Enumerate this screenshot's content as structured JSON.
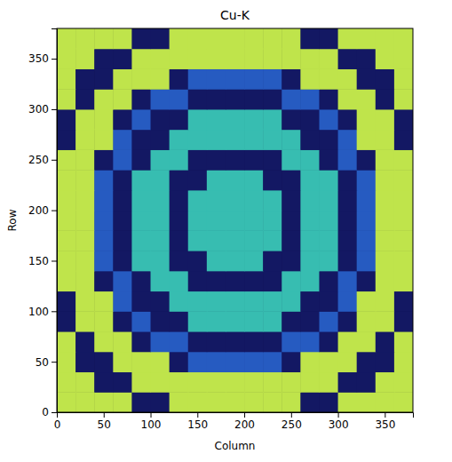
{
  "chart_data": {
    "type": "heatmap",
    "title": "Cu-K",
    "x_label": "Column",
    "y_label": "Row",
    "x": [
      10,
      30,
      50,
      70,
      90,
      110,
      130,
      150,
      170,
      190,
      210,
      230,
      250,
      270,
      290,
      310,
      330,
      350,
      370
    ],
    "y": [
      10,
      30,
      50,
      70,
      90,
      110,
      130,
      150,
      170,
      190,
      210,
      230,
      250,
      270,
      290,
      310,
      330,
      350,
      370
    ],
    "values": [
      [
        7,
        7,
        7,
        7,
        1,
        1,
        7,
        7,
        7,
        7,
        7,
        7,
        7,
        1,
        1,
        7,
        7,
        7,
        7
      ],
      [
        7,
        7,
        1,
        1,
        7,
        7,
        7,
        7,
        7,
        7,
        7,
        7,
        7,
        7,
        7,
        1,
        1,
        7,
        7
      ],
      [
        7,
        1,
        1,
        7,
        7,
        7,
        1,
        3,
        3,
        3,
        3,
        3,
        1,
        7,
        7,
        7,
        1,
        1,
        7
      ],
      [
        7,
        1,
        7,
        7,
        1,
        3,
        3,
        1,
        1,
        1,
        1,
        1,
        3,
        3,
        1,
        7,
        7,
        1,
        7
      ],
      [
        1,
        7,
        7,
        1,
        3,
        1,
        1,
        5,
        5,
        5,
        5,
        5,
        1,
        1,
        3,
        1,
        7,
        7,
        1
      ],
      [
        1,
        7,
        7,
        3,
        1,
        1,
        5,
        5,
        5,
        5,
        5,
        5,
        5,
        1,
        1,
        3,
        7,
        7,
        1
      ],
      [
        7,
        7,
        1,
        3,
        1,
        5,
        5,
        1,
        1,
        1,
        1,
        1,
        5,
        5,
        1,
        3,
        1,
        7,
        7
      ],
      [
        7,
        7,
        3,
        1,
        5,
        5,
        1,
        1,
        5,
        5,
        5,
        1,
        1,
        5,
        5,
        1,
        3,
        7,
        7
      ],
      [
        7,
        7,
        3,
        1,
        5,
        5,
        1,
        5,
        5,
        5,
        5,
        5,
        1,
        5,
        5,
        1,
        3,
        7,
        7
      ],
      [
        7,
        7,
        3,
        1,
        5,
        5,
        1,
        5,
        5,
        5,
        5,
        5,
        1,
        5,
        5,
        1,
        3,
        7,
        7
      ],
      [
        7,
        7,
        3,
        1,
        5,
        5,
        1,
        5,
        5,
        5,
        5,
        5,
        1,
        5,
        5,
        1,
        3,
        7,
        7
      ],
      [
        7,
        7,
        3,
        1,
        5,
        5,
        1,
        1,
        5,
        5,
        5,
        1,
        1,
        5,
        5,
        1,
        3,
        7,
        7
      ],
      [
        7,
        7,
        1,
        3,
        1,
        5,
        5,
        1,
        1,
        1,
        1,
        1,
        5,
        5,
        1,
        3,
        1,
        7,
        7
      ],
      [
        1,
        7,
        7,
        3,
        1,
        1,
        5,
        5,
        5,
        5,
        5,
        5,
        5,
        1,
        1,
        3,
        7,
        7,
        1
      ],
      [
        1,
        7,
        7,
        1,
        3,
        1,
        1,
        5,
        5,
        5,
        5,
        5,
        1,
        1,
        3,
        1,
        7,
        7,
        1
      ],
      [
        7,
        1,
        7,
        7,
        1,
        3,
        3,
        1,
        1,
        1,
        1,
        1,
        3,
        3,
        1,
        7,
        7,
        1,
        7
      ],
      [
        7,
        1,
        1,
        7,
        7,
        7,
        1,
        3,
        3,
        3,
        3,
        3,
        1,
        7,
        7,
        7,
        1,
        1,
        7
      ],
      [
        7,
        7,
        1,
        1,
        7,
        7,
        7,
        7,
        7,
        7,
        7,
        7,
        7,
        7,
        7,
        1,
        1,
        7,
        7
      ],
      [
        7,
        7,
        7,
        7,
        1,
        1,
        7,
        7,
        7,
        7,
        7,
        7,
        7,
        1,
        1,
        7,
        7,
        7,
        7
      ]
    ],
    "value_range": [
      0,
      8
    ],
    "xlim": [
      0,
      380
    ],
    "ylim": [
      0,
      380
    ],
    "xticks": [
      0,
      50,
      100,
      150,
      200,
      250,
      300,
      350
    ],
    "yticks": [
      0,
      50,
      100,
      150,
      200,
      250,
      300,
      350
    ]
  }
}
